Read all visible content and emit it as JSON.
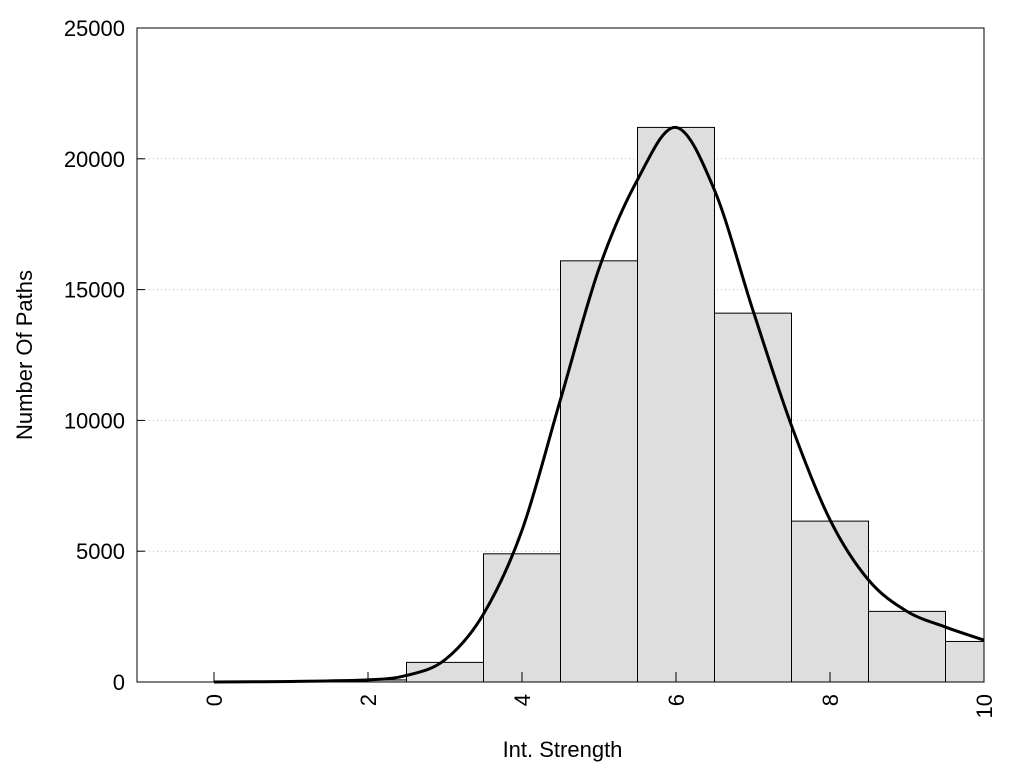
{
  "chart_data": {
    "type": "bar",
    "title": "",
    "xlabel": "Int. Strength",
    "ylabel": "Number Of Paths",
    "xlim": [
      -1,
      10
    ],
    "ylim": [
      0,
      25000
    ],
    "x_ticks": [
      0,
      2,
      4,
      6,
      8,
      10
    ],
    "x_tick_labels": [
      "0",
      "2",
      "4",
      "6",
      "8",
      "10"
    ],
    "y_ticks": [
      0,
      5000,
      10000,
      15000,
      20000,
      25000
    ],
    "y_tick_labels": [
      "0",
      "5000",
      "10000",
      "15000",
      "20000",
      "25000"
    ],
    "grid": "horizontal dotted",
    "legend": "none",
    "bar_color": "#dedede",
    "bar_edge_color": "#000000",
    "bins": [
      {
        "center": 0,
        "value": 0
      },
      {
        "center": 1,
        "value": 0
      },
      {
        "center": 2,
        "value": 80
      },
      {
        "center": 3,
        "value": 750
      },
      {
        "center": 4,
        "value": 4900
      },
      {
        "center": 5,
        "value": 16100
      },
      {
        "center": 6,
        "value": 21200
      },
      {
        "center": 7,
        "value": 14100
      },
      {
        "center": 8,
        "value": 6150
      },
      {
        "center": 9,
        "value": 2700
      },
      {
        "center": 10,
        "value": 1550
      }
    ],
    "density_curve": {
      "x": [
        0,
        1,
        2,
        2.5,
        3,
        3.5,
        4,
        4.5,
        5,
        5.5,
        6,
        6.5,
        7,
        7.5,
        8,
        8.5,
        9,
        9.5,
        10
      ],
      "y": [
        0,
        20,
        80,
        250,
        850,
        2600,
        5800,
        10800,
        15800,
        19200,
        21200,
        18800,
        14200,
        9800,
        6200,
        3900,
        2700,
        2100,
        1600
      ]
    }
  }
}
